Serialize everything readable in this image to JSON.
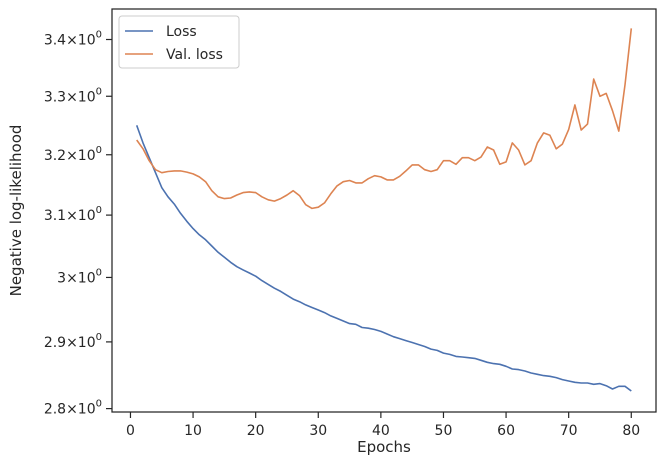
{
  "chart_data": {
    "type": "line",
    "xlabel": "Epochs",
    "ylabel": "Negative log-likelihood",
    "xlim": [
      -2.95,
      83.95
    ],
    "ylim": [
      2.795,
      3.455
    ],
    "yscale": "log",
    "grid": false,
    "legend_position": "top-left",
    "xticks": [
      0,
      10,
      20,
      30,
      40,
      50,
      60,
      70,
      80
    ],
    "yticks": [
      {
        "value": 2.8,
        "mantissa": "2.8"
      },
      {
        "value": 2.9,
        "mantissa": "2.9"
      },
      {
        "value": 3.0,
        "mantissa": "3"
      },
      {
        "value": 3.1,
        "mantissa": "3.1"
      },
      {
        "value": 3.2,
        "mantissa": "3.2"
      },
      {
        "value": 3.3,
        "mantissa": "3.3"
      },
      {
        "value": 3.4,
        "mantissa": "3.4"
      }
    ],
    "tick_base": "10",
    "tick_exponent": "0",
    "series": [
      {
        "name": "Loss",
        "color": "#4c72b0",
        "x": [
          1,
          2,
          3,
          4,
          5,
          6,
          7,
          8,
          9,
          10,
          11,
          12,
          13,
          14,
          15,
          16,
          17,
          18,
          19,
          20,
          21,
          22,
          23,
          24,
          25,
          26,
          27,
          28,
          29,
          30,
          31,
          32,
          33,
          34,
          35,
          36,
          37,
          38,
          39,
          40,
          41,
          42,
          43,
          44,
          45,
          46,
          47,
          48,
          49,
          50,
          51,
          52,
          53,
          54,
          55,
          56,
          57,
          58,
          59,
          60,
          61,
          62,
          63,
          64,
          65,
          66,
          67,
          68,
          69,
          70,
          71,
          72,
          73,
          74,
          75,
          76,
          77,
          78,
          79,
          80
        ],
        "values": [
          3.25,
          3.22,
          3.195,
          3.17,
          3.145,
          3.13,
          3.118,
          3.103,
          3.09,
          3.078,
          3.068,
          3.06,
          3.05,
          3.04,
          3.032,
          3.024,
          3.017,
          3.012,
          3.007,
          3.002,
          2.995,
          2.989,
          2.983,
          2.978,
          2.972,
          2.966,
          2.962,
          2.957,
          2.953,
          2.949,
          2.945,
          2.94,
          2.936,
          2.932,
          2.928,
          2.927,
          2.922,
          2.921,
          2.919,
          2.916,
          2.912,
          2.908,
          2.905,
          2.902,
          2.899,
          2.896,
          2.893,
          2.889,
          2.887,
          2.883,
          2.881,
          2.878,
          2.877,
          2.876,
          2.875,
          2.872,
          2.869,
          2.867,
          2.866,
          2.863,
          2.859,
          2.858,
          2.856,
          2.853,
          2.851,
          2.849,
          2.848,
          2.846,
          2.843,
          2.841,
          2.839,
          2.838,
          2.838,
          2.836,
          2.837,
          2.834,
          2.829,
          2.833,
          2.833,
          2.826
        ]
      },
      {
        "name": "Val. loss",
        "color": "#dd8452",
        "x": [
          1,
          2,
          3,
          4,
          5,
          6,
          7,
          8,
          9,
          10,
          11,
          12,
          13,
          14,
          15,
          16,
          17,
          18,
          19,
          20,
          21,
          22,
          23,
          24,
          25,
          26,
          27,
          28,
          29,
          30,
          31,
          32,
          33,
          34,
          35,
          36,
          37,
          38,
          39,
          40,
          41,
          42,
          43,
          44,
          45,
          46,
          47,
          48,
          49,
          50,
          51,
          52,
          53,
          54,
          55,
          56,
          57,
          58,
          59,
          60,
          61,
          62,
          63,
          64,
          65,
          66,
          67,
          68,
          69,
          70,
          71,
          72,
          73,
          74,
          75,
          76,
          77,
          78,
          79,
          80
        ],
        "values": [
          3.225,
          3.21,
          3.19,
          3.175,
          3.17,
          3.172,
          3.173,
          3.173,
          3.171,
          3.168,
          3.163,
          3.155,
          3.14,
          3.13,
          3.127,
          3.128,
          3.133,
          3.137,
          3.138,
          3.137,
          3.13,
          3.125,
          3.123,
          3.127,
          3.133,
          3.14,
          3.132,
          3.117,
          3.111,
          3.113,
          3.12,
          3.135,
          3.148,
          3.155,
          3.157,
          3.153,
          3.153,
          3.16,
          3.165,
          3.163,
          3.158,
          3.158,
          3.164,
          3.173,
          3.183,
          3.183,
          3.175,
          3.172,
          3.175,
          3.19,
          3.19,
          3.184,
          3.195,
          3.195,
          3.19,
          3.196,
          3.213,
          3.208,
          3.184,
          3.188,
          3.22,
          3.208,
          3.183,
          3.19,
          3.22,
          3.237,
          3.233,
          3.21,
          3.218,
          3.243,
          3.285,
          3.242,
          3.252,
          3.33,
          3.3,
          3.305,
          3.275,
          3.24,
          3.32,
          3.42
        ]
      }
    ]
  }
}
